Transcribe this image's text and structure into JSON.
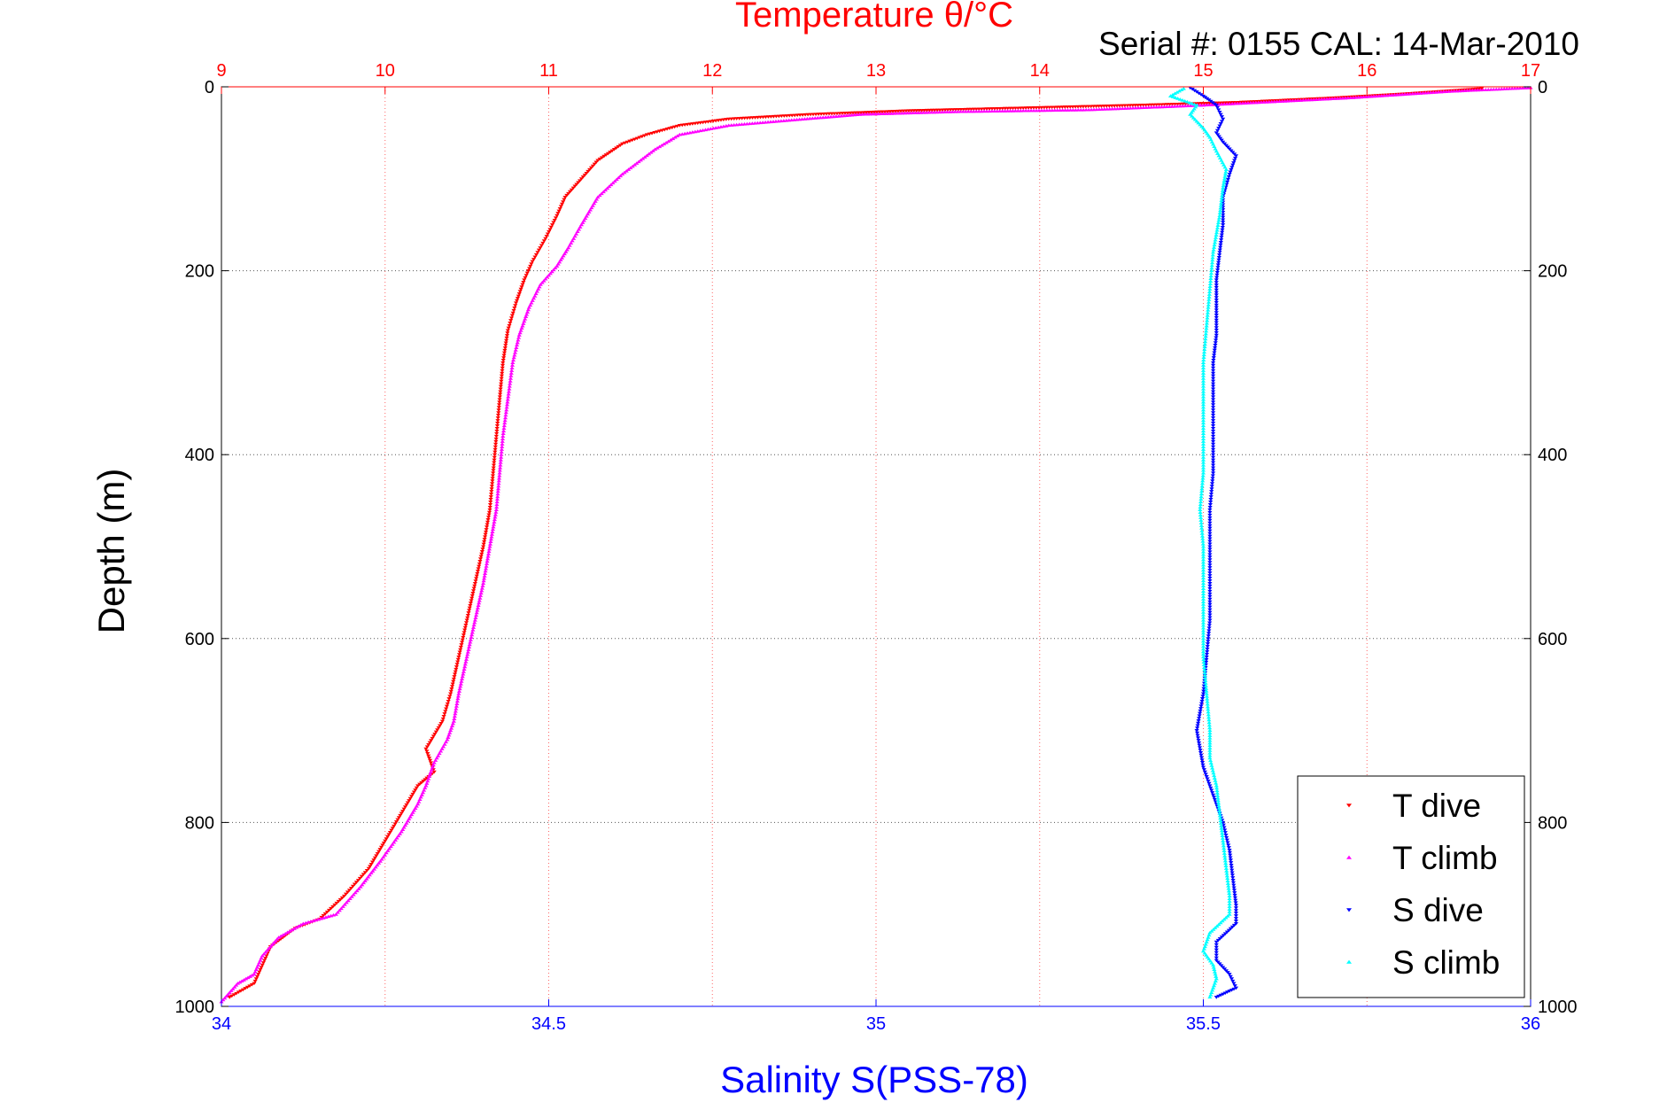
{
  "chart_data": {
    "type": "scatter",
    "title": "Temperature θ/°C",
    "annotation": "Serial #: 0155  CAL: 14-Mar-2010",
    "ylabel": "Depth (m)",
    "xlabel_bottom": "Salinity S(PSS-78)",
    "xlabel_top": "Temperature θ/°C",
    "y_reversed": true,
    "ylim": [
      0,
      1000
    ],
    "yticks": [
      0,
      200,
      400,
      600,
      800,
      1000
    ],
    "ytick_labels": [
      "0",
      "200",
      "400",
      "600",
      "800",
      "1000"
    ],
    "x_bottom": {
      "lim": [
        34,
        36
      ],
      "ticks": [
        34,
        34.5,
        35,
        35.5,
        36
      ],
      "tick_labels": [
        "34",
        "34.5",
        "35",
        "35.5",
        "36"
      ],
      "color": "#0000ff"
    },
    "x_top": {
      "lim": [
        9,
        17
      ],
      "ticks": [
        9,
        10,
        11,
        12,
        13,
        14,
        15,
        16,
        17
      ],
      "tick_labels": [
        "9",
        "10",
        "11",
        "12",
        "13",
        "14",
        "15",
        "16",
        "17"
      ],
      "color": "#ff0000"
    },
    "grid": true,
    "legend_placement": "bottom-right",
    "series": [
      {
        "name": "T dive",
        "axis": "top",
        "color": "#ff0000",
        "marker": "triangle-down",
        "points": [
          [
            16.7,
            2
          ],
          [
            16.2,
            8
          ],
          [
            15.8,
            12
          ],
          [
            15.2,
            17
          ],
          [
            14.6,
            20
          ],
          [
            13.9,
            23
          ],
          [
            13.2,
            26
          ],
          [
            12.6,
            30
          ],
          [
            12.1,
            35
          ],
          [
            11.8,
            42
          ],
          [
            11.6,
            52
          ],
          [
            11.45,
            62
          ],
          [
            11.3,
            80
          ],
          [
            11.2,
            100
          ],
          [
            11.1,
            120
          ],
          [
            11.05,
            140
          ],
          [
            10.98,
            165
          ],
          [
            10.9,
            190
          ],
          [
            10.85,
            210
          ],
          [
            10.8,
            235
          ],
          [
            10.75,
            265
          ],
          [
            10.72,
            300
          ],
          [
            10.7,
            340
          ],
          [
            10.68,
            380
          ],
          [
            10.66,
            420
          ],
          [
            10.64,
            460
          ],
          [
            10.6,
            500
          ],
          [
            10.55,
            540
          ],
          [
            10.5,
            580
          ],
          [
            10.45,
            620
          ],
          [
            10.4,
            660
          ],
          [
            10.35,
            690
          ],
          [
            10.25,
            720
          ],
          [
            10.3,
            745
          ],
          [
            10.2,
            760
          ],
          [
            10.1,
            790
          ],
          [
            10.0,
            820
          ],
          [
            9.9,
            850
          ],
          [
            9.75,
            880
          ],
          [
            9.6,
            905
          ],
          [
            9.45,
            915
          ],
          [
            9.3,
            935
          ],
          [
            9.25,
            955
          ],
          [
            9.2,
            975
          ],
          [
            9.05,
            990
          ]
        ]
      },
      {
        "name": "T climb",
        "axis": "top",
        "color": "#ff00ff",
        "marker": "triangle-up",
        "points": [
          [
            17.0,
            1
          ],
          [
            16.5,
            5
          ],
          [
            15.9,
            12
          ],
          [
            15.0,
            20
          ],
          [
            14.3,
            25
          ],
          [
            13.5,
            27
          ],
          [
            12.9,
            30
          ],
          [
            12.5,
            36
          ],
          [
            12.1,
            42
          ],
          [
            11.8,
            52
          ],
          [
            11.65,
            68
          ],
          [
            11.45,
            95
          ],
          [
            11.3,
            120
          ],
          [
            11.2,
            150
          ],
          [
            11.12,
            175
          ],
          [
            11.05,
            195
          ],
          [
            10.95,
            215
          ],
          [
            10.88,
            240
          ],
          [
            10.82,
            270
          ],
          [
            10.78,
            300
          ],
          [
            10.75,
            340
          ],
          [
            10.72,
            380
          ],
          [
            10.7,
            420
          ],
          [
            10.68,
            460
          ],
          [
            10.64,
            500
          ],
          [
            10.6,
            540
          ],
          [
            10.55,
            580
          ],
          [
            10.5,
            620
          ],
          [
            10.45,
            660
          ],
          [
            10.42,
            690
          ],
          [
            10.38,
            710
          ],
          [
            10.3,
            735
          ],
          [
            10.25,
            760
          ],
          [
            10.2,
            780
          ],
          [
            10.1,
            810
          ],
          [
            9.98,
            840
          ],
          [
            9.85,
            870
          ],
          [
            9.7,
            900
          ],
          [
            9.5,
            910
          ],
          [
            9.35,
            925
          ],
          [
            9.25,
            945
          ],
          [
            9.2,
            965
          ],
          [
            9.1,
            975
          ],
          [
            9.0,
            995
          ]
        ]
      },
      {
        "name": "S dive",
        "axis": "bottom",
        "color": "#0000ff",
        "marker": "triangle-down",
        "points": [
          [
            35.48,
            1
          ],
          [
            35.5,
            10
          ],
          [
            35.52,
            20
          ],
          [
            35.53,
            35
          ],
          [
            35.52,
            50
          ],
          [
            35.53,
            60
          ],
          [
            35.55,
            75
          ],
          [
            35.54,
            95
          ],
          [
            35.53,
            120
          ],
          [
            35.53,
            150
          ],
          [
            35.525,
            180
          ],
          [
            35.52,
            210
          ],
          [
            35.52,
            240
          ],
          [
            35.52,
            270
          ],
          [
            35.515,
            300
          ],
          [
            35.515,
            340
          ],
          [
            35.515,
            380
          ],
          [
            35.515,
            420
          ],
          [
            35.51,
            460
          ],
          [
            35.51,
            500
          ],
          [
            35.51,
            540
          ],
          [
            35.51,
            580
          ],
          [
            35.505,
            620
          ],
          [
            35.5,
            660
          ],
          [
            35.49,
            700
          ],
          [
            35.5,
            740
          ],
          [
            35.515,
            770
          ],
          [
            35.53,
            800
          ],
          [
            35.54,
            830
          ],
          [
            35.545,
            860
          ],
          [
            35.55,
            890
          ],
          [
            35.55,
            910
          ],
          [
            35.52,
            930
          ],
          [
            35.52,
            950
          ],
          [
            35.54,
            965
          ],
          [
            35.55,
            980
          ],
          [
            35.52,
            990
          ]
        ]
      },
      {
        "name": "S climb",
        "axis": "bottom",
        "color": "#00ffff",
        "marker": "triangle-up",
        "points": [
          [
            35.47,
            2
          ],
          [
            35.45,
            10
          ],
          [
            35.49,
            20
          ],
          [
            35.48,
            30
          ],
          [
            35.5,
            45
          ],
          [
            35.51,
            55
          ],
          [
            35.52,
            70
          ],
          [
            35.535,
            90
          ],
          [
            35.53,
            110
          ],
          [
            35.525,
            140
          ],
          [
            35.515,
            180
          ],
          [
            35.51,
            220
          ],
          [
            35.505,
            260
          ],
          [
            35.5,
            300
          ],
          [
            35.5,
            340
          ],
          [
            35.5,
            380
          ],
          [
            35.5,
            420
          ],
          [
            35.495,
            460
          ],
          [
            35.5,
            500
          ],
          [
            35.5,
            540
          ],
          [
            35.5,
            580
          ],
          [
            35.5,
            620
          ],
          [
            35.505,
            660
          ],
          [
            35.51,
            700
          ],
          [
            35.51,
            730
          ],
          [
            35.52,
            760
          ],
          [
            35.525,
            790
          ],
          [
            35.53,
            820
          ],
          [
            35.535,
            850
          ],
          [
            35.54,
            880
          ],
          [
            35.54,
            900
          ],
          [
            35.51,
            920
          ],
          [
            35.5,
            940
          ],
          [
            35.515,
            955
          ],
          [
            35.52,
            970
          ],
          [
            35.51,
            990
          ]
        ]
      }
    ]
  }
}
